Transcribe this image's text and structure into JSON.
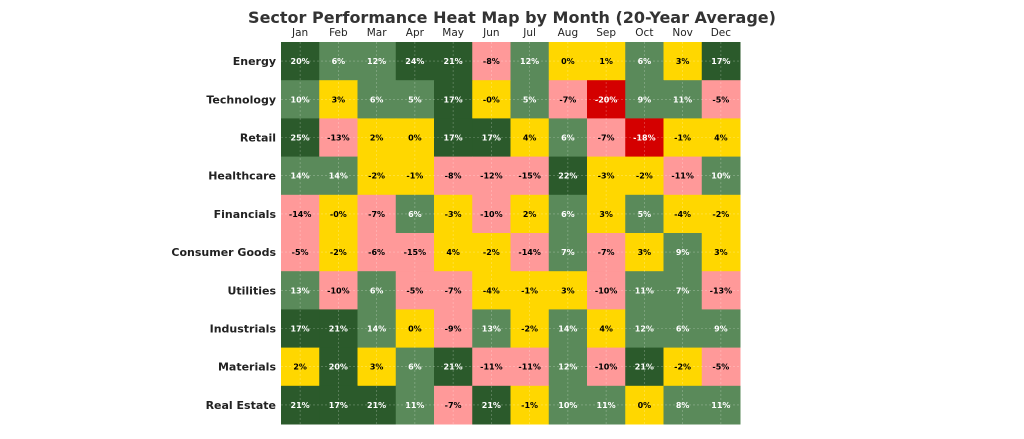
{
  "chart_data": {
    "type": "heatmap",
    "title": "Sector Performance Heat Map by Month (20-Year Average)",
    "columns": [
      "Jan",
      "Feb",
      "Mar",
      "Apr",
      "May",
      "Jun",
      "Jul",
      "Aug",
      "Sep",
      "Oct",
      "Nov",
      "Dec"
    ],
    "rows": [
      "Energy",
      "Technology",
      "Retail",
      "Healthcare",
      "Financials",
      "Consumer Goods",
      "Utilities",
      "Industrials",
      "Materials",
      "Real Estate"
    ],
    "values": [
      [
        20,
        6,
        12,
        24,
        21,
        -8,
        12,
        0,
        1,
        6,
        3,
        17
      ],
      [
        10,
        3,
        6,
        5,
        17,
        0,
        5,
        -7,
        -20,
        9,
        11,
        -5
      ],
      [
        25,
        -13,
        2,
        0,
        17,
        17,
        4,
        6,
        -7,
        -18,
        -1,
        4
      ],
      [
        14,
        14,
        -2,
        -1,
        -8,
        -12,
        -15,
        22,
        -3,
        -2,
        -11,
        10
      ],
      [
        -14,
        0,
        -7,
        6,
        -3,
        -10,
        2,
        6,
        3,
        5,
        -4,
        -2
      ],
      [
        -5,
        -2,
        -6,
        -15,
        4,
        -2,
        -14,
        7,
        -7,
        3,
        9,
        3
      ],
      [
        13,
        -10,
        6,
        -5,
        -7,
        -4,
        -1,
        3,
        -10,
        11,
        7,
        -13
      ],
      [
        17,
        21,
        14,
        0,
        -9,
        13,
        -2,
        14,
        4,
        12,
        6,
        9
      ],
      [
        2,
        20,
        3,
        6,
        21,
        -11,
        -11,
        12,
        -10,
        21,
        -2,
        -5
      ],
      [
        21,
        17,
        21,
        11,
        -7,
        21,
        -1,
        10,
        11,
        0,
        8,
        11
      ]
    ],
    "labels": [
      [
        "20%",
        "6%",
        "12%",
        "24%",
        "21%",
        "-8%",
        "12%",
        "0%",
        "1%",
        "6%",
        "3%",
        "17%"
      ],
      [
        "10%",
        "3%",
        "6%",
        "5%",
        "17%",
        "-0%",
        "5%",
        "-7%",
        "-20%",
        "9%",
        "11%",
        "-5%"
      ],
      [
        "25%",
        "-13%",
        "2%",
        "0%",
        "17%",
        "17%",
        "4%",
        "6%",
        "-7%",
        "-18%",
        "-1%",
        "4%"
      ],
      [
        "14%",
        "14%",
        "-2%",
        "-1%",
        "-8%",
        "-12%",
        "-15%",
        "22%",
        "-3%",
        "-2%",
        "-11%",
        "10%"
      ],
      [
        "-14%",
        "-0%",
        "-7%",
        "6%",
        "-3%",
        "-10%",
        "2%",
        "6%",
        "3%",
        "5%",
        "-4%",
        "-2%"
      ],
      [
        "-5%",
        "-2%",
        "-6%",
        "-15%",
        "4%",
        "-2%",
        "-14%",
        "7%",
        "-7%",
        "3%",
        "9%",
        "3%"
      ],
      [
        "13%",
        "-10%",
        "6%",
        "-5%",
        "-7%",
        "-4%",
        "-1%",
        "3%",
        "-10%",
        "11%",
        "7%",
        "-13%"
      ],
      [
        "17%",
        "21%",
        "14%",
        "0%",
        "-9%",
        "13%",
        "-2%",
        "14%",
        "4%",
        "12%",
        "6%",
        "9%"
      ],
      [
        "2%",
        "20%",
        "3%",
        "6%",
        "21%",
        "-11%",
        "-11%",
        "12%",
        "-10%",
        "21%",
        "-2%",
        "-5%"
      ],
      [
        "21%",
        "17%",
        "21%",
        "11%",
        "-7%",
        "21%",
        "-1%",
        "10%",
        "11%",
        "0%",
        "8%",
        "11%"
      ]
    ],
    "color_bins": [
      {
        "min": -100,
        "max": -15,
        "color": "#d40000"
      },
      {
        "min": -15,
        "max": -4,
        "color": "#ff9999"
      },
      {
        "min": -4,
        "max": 5,
        "color": "#ffd700"
      },
      {
        "min": 5,
        "max": 15,
        "color": "#5a8a5a"
      },
      {
        "min": 15,
        "max": 100,
        "color": "#2b5a2b"
      }
    ],
    "text_colors": {
      "on_dark": "#ffffff",
      "on_light": "#000000"
    },
    "grid": true
  }
}
